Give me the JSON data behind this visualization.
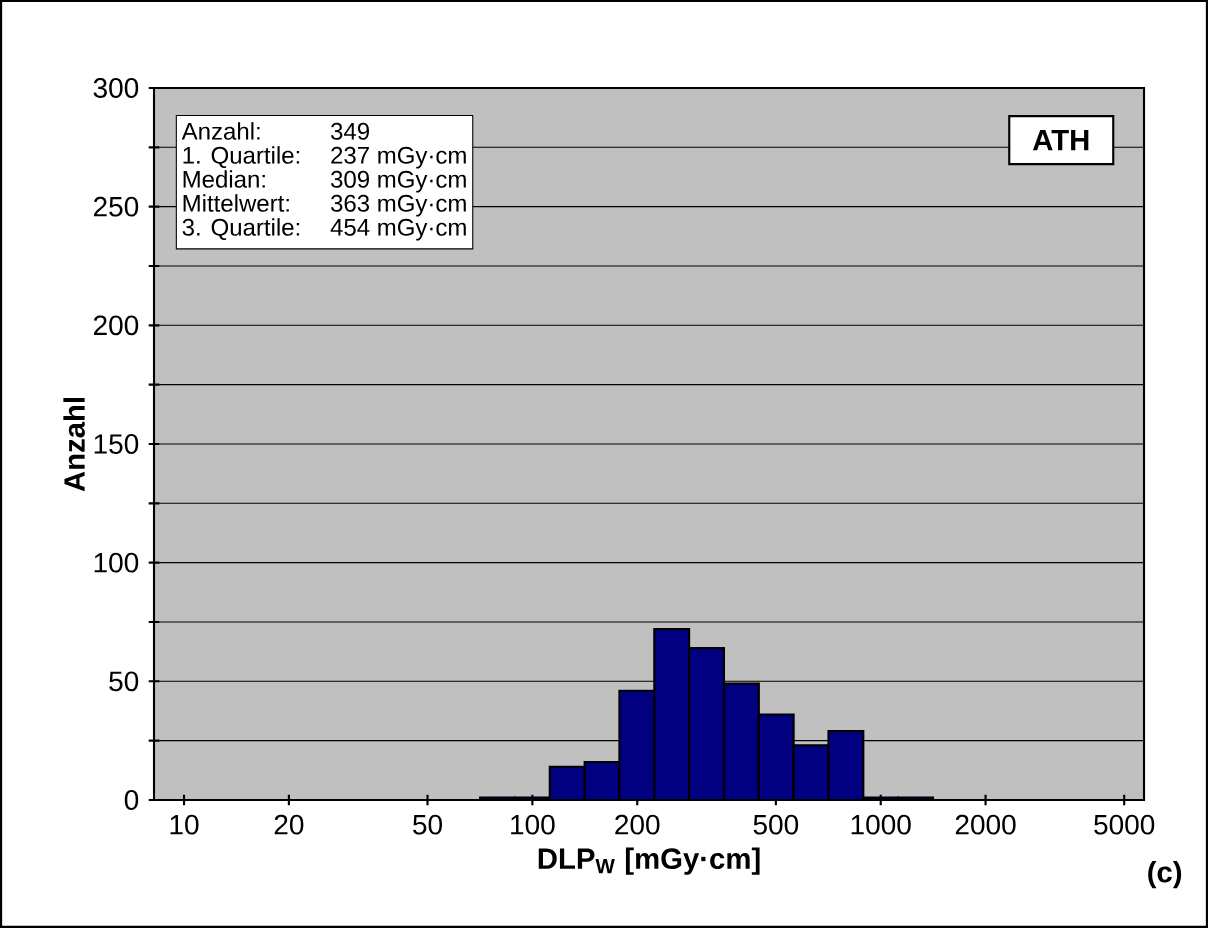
{
  "chart_data": {
    "type": "histogram",
    "xlabel": "DLP$_{W}$ [mGy·cm]",
    "ylabel": "Anzahl",
    "bins": [
      70.8,
      89.1,
      112.2,
      141.3,
      177.8,
      223.9,
      281.8,
      354.8,
      446.7,
      562.3,
      707.9,
      891.3,
      1122,
      1413
    ],
    "values": [
      1,
      1,
      14,
      16,
      46,
      72,
      64,
      49,
      36,
      23,
      29,
      1,
      1
    ],
    "color": "#000080",
    "log": "x",
    "xlim": [
      8.2,
      5700
    ],
    "xticks": [
      10,
      20,
      50,
      100,
      200,
      500,
      1000,
      2000,
      5000
    ],
    "ylim": [
      0,
      300
    ],
    "yticks": [
      0,
      {
        "value": 25,
        "label": null
      },
      50,
      {
        "value": 75,
        "label": null
      },
      100,
      {
        "value": 125,
        "label": null
      },
      150,
      {
        "value": 175,
        "label": null
      },
      200,
      {
        "value": 225,
        "label": null
      },
      250,
      {
        "value": 275,
        "label": null
      },
      300
    ],
    "grid": "y",
    "annotations": [
      "Anzahl:",
      "349",
      "1. Quartile:",
      "237 mGy·cm",
      "Median:",
      "309 mGy·cm",
      "Mittelwert:",
      "363 mGy·cm",
      "3. Quartile:",
      "454 mGy·cm",
      "ATH",
      "(c)"
    ]
  }
}
